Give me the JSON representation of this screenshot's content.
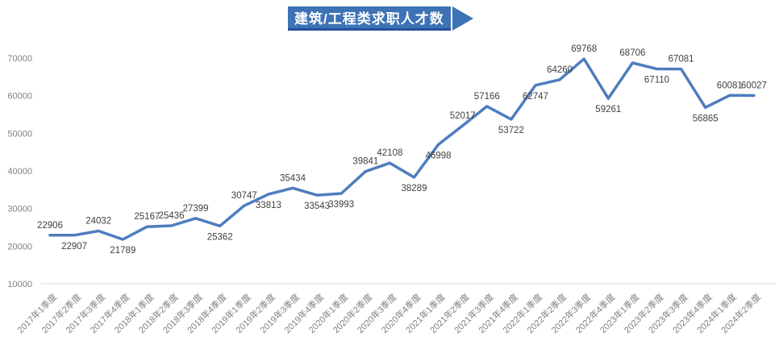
{
  "title": {
    "text": "建筑/工程类求职人才数"
  },
  "colors": {
    "banner_fill": "#3D72B5",
    "banner_underline": "#28519B",
    "banner_text": "#FFFFFF",
    "line": "#4E7DBE",
    "data_label": "#3F3F3F",
    "axis_label": "#808080",
    "axis_line": "#D9D9D9",
    "background": "#FFFFFF"
  },
  "chart_data": {
    "type": "line",
    "title": "建筑/工程类求职人才数",
    "categories": [
      "2017年1季度",
      "2017年2季度",
      "2017年3季度",
      "2017年4季度",
      "2018年1季度",
      "2018年2季度",
      "2018年3季度",
      "2018年4季度",
      "2019年1季度",
      "2019年2季度",
      "2019年3季度",
      "2019年4季度",
      "2020年1季度",
      "2020年2季度",
      "2020年3季度",
      "2020年4季度",
      "2021年1季度",
      "2021年2季度",
      "2021年3季度",
      "2021年4季度",
      "2022年1季度",
      "2022年2季度",
      "2022年3季度",
      "2022年4季度",
      "2023年1季度",
      "2023年2季度",
      "2023年3季度",
      "2023年4季度",
      "2024年1季度",
      "2024年2季度"
    ],
    "values": [
      22906,
      22907,
      24032,
      21789,
      25167,
      25436,
      27399,
      25362,
      30747,
      33813,
      35434,
      33543,
      33993,
      39841,
      42108,
      38289,
      46998,
      52017,
      57166,
      53722,
      62747,
      64260,
      69768,
      59261,
      68706,
      67110,
      67081,
      56865,
      60081,
      60027
    ],
    "data_label_positions": [
      "above",
      "below",
      "above",
      "below",
      "above",
      "above",
      "above",
      "below",
      "above",
      "below",
      "above",
      "below",
      "below",
      "above",
      "above",
      "below",
      "below",
      "above",
      "above",
      "below",
      "below",
      "above",
      "above",
      "below",
      "above",
      "below",
      "above",
      "below",
      "above",
      "above"
    ],
    "xlabel": "",
    "ylabel": "",
    "ylim": [
      10000,
      70000
    ],
    "yticks": [
      10000,
      20000,
      30000,
      40000,
      50000,
      60000,
      70000
    ],
    "grid": false,
    "legend": "none",
    "x_tick_rotation": 45,
    "data_labels_shown": true
  }
}
